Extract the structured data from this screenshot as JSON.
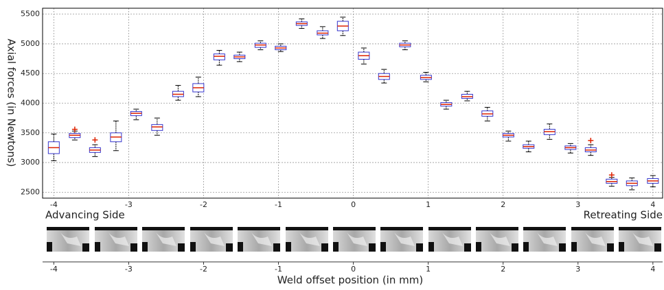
{
  "chart_data": {
    "type": "box",
    "ylabel": "Axial forces (in Newtons)",
    "xlabel": "Weld offset position (in mm)",
    "annotations": [
      "Advancing Side",
      "Retreating Side"
    ],
    "xlim": [
      -4.15,
      4.13
    ],
    "ylim": [
      2400,
      5600
    ],
    "xticks": [
      -4,
      -3,
      -2,
      -1,
      0,
      1,
      2,
      3,
      4
    ],
    "yticks": [
      2500,
      3000,
      3500,
      4000,
      4500,
      5000,
      5500
    ],
    "grid": true,
    "box_color": "#3333cc",
    "median_color": "#dd2200",
    "whisker_color": "#000000",
    "flier_color": "#dd2200",
    "boxes": [
      {
        "x": -4,
        "median": 3250,
        "q1": 3150,
        "q3": 3350,
        "whislo": 3030,
        "whishi": 3480
      },
      {
        "x": -3.72,
        "median": 3460,
        "q1": 3420,
        "q3": 3490,
        "whislo": 3380,
        "whishi": 3530,
        "fliers": [
          3560
        ]
      },
      {
        "x": -3.45,
        "median": 3210,
        "q1": 3170,
        "q3": 3250,
        "whislo": 3100,
        "whishi": 3300,
        "fliers": [
          3380
        ]
      },
      {
        "x": -3.17,
        "median": 3430,
        "q1": 3350,
        "q3": 3500,
        "whislo": 3200,
        "whishi": 3700
      },
      {
        "x": -2.9,
        "median": 3830,
        "q1": 3790,
        "q3": 3860,
        "whislo": 3720,
        "whishi": 3900
      },
      {
        "x": -2.62,
        "median": 3600,
        "q1": 3540,
        "q3": 3640,
        "whislo": 3460,
        "whishi": 3750
      },
      {
        "x": -2.34,
        "median": 4150,
        "q1": 4110,
        "q3": 4200,
        "whislo": 4050,
        "whishi": 4300
      },
      {
        "x": -2.07,
        "median": 4260,
        "q1": 4190,
        "q3": 4330,
        "whislo": 4110,
        "whishi": 4440
      },
      {
        "x": -1.79,
        "median": 4790,
        "q1": 4730,
        "q3": 4830,
        "whislo": 4640,
        "whishi": 4890
      },
      {
        "x": -1.52,
        "median": 4780,
        "q1": 4750,
        "q3": 4810,
        "whislo": 4700,
        "whishi": 4860
      },
      {
        "x": -1.24,
        "median": 4980,
        "q1": 4940,
        "q3": 5010,
        "whislo": 4900,
        "whishi": 5050
      },
      {
        "x": -0.97,
        "median": 4930,
        "q1": 4900,
        "q3": 4960,
        "whislo": 4870,
        "whishi": 5000
      },
      {
        "x": -0.69,
        "median": 5340,
        "q1": 5310,
        "q3": 5370,
        "whislo": 5260,
        "whishi": 5420
      },
      {
        "x": -0.41,
        "median": 5180,
        "q1": 5150,
        "q3": 5220,
        "whislo": 5090,
        "whishi": 5290
      },
      {
        "x": -0.14,
        "median": 5300,
        "q1": 5220,
        "q3": 5380,
        "whislo": 5140,
        "whishi": 5450
      },
      {
        "x": 0.14,
        "median": 4800,
        "q1": 4740,
        "q3": 4860,
        "whislo": 4660,
        "whishi": 4930
      },
      {
        "x": 0.41,
        "median": 4450,
        "q1": 4400,
        "q3": 4500,
        "whislo": 4340,
        "whishi": 4570
      },
      {
        "x": 0.69,
        "median": 4980,
        "q1": 4950,
        "q3": 5010,
        "whislo": 4900,
        "whishi": 5050
      },
      {
        "x": 0.97,
        "median": 4430,
        "q1": 4400,
        "q3": 4470,
        "whislo": 4360,
        "whishi": 4520
      },
      {
        "x": 1.24,
        "median": 3980,
        "q1": 3950,
        "q3": 4010,
        "whislo": 3900,
        "whishi": 4050
      },
      {
        "x": 1.52,
        "median": 4110,
        "q1": 4080,
        "q3": 4150,
        "whislo": 4040,
        "whishi": 4200
      },
      {
        "x": 1.79,
        "median": 3820,
        "q1": 3780,
        "q3": 3870,
        "whislo": 3700,
        "whishi": 3930
      },
      {
        "x": 2.07,
        "median": 3460,
        "q1": 3430,
        "q3": 3490,
        "whislo": 3360,
        "whishi": 3530
      },
      {
        "x": 2.34,
        "median": 3270,
        "q1": 3240,
        "q3": 3300,
        "whislo": 3180,
        "whishi": 3360
      },
      {
        "x": 2.62,
        "median": 3520,
        "q1": 3470,
        "q3": 3560,
        "whislo": 3390,
        "whishi": 3650
      },
      {
        "x": 2.9,
        "median": 3250,
        "q1": 3220,
        "q3": 3280,
        "whislo": 3160,
        "whishi": 3320
      },
      {
        "x": 3.17,
        "median": 3210,
        "q1": 3180,
        "q3": 3250,
        "whislo": 3120,
        "whishi": 3300,
        "fliers": [
          3370
        ]
      },
      {
        "x": 3.45,
        "median": 2680,
        "q1": 2650,
        "q3": 2720,
        "whislo": 2600,
        "whishi": 2750,
        "fliers": [
          2790
        ]
      },
      {
        "x": 3.72,
        "median": 2650,
        "q1": 2610,
        "q3": 2690,
        "whislo": 2540,
        "whishi": 2740
      },
      {
        "x": 4,
        "median": 2690,
        "q1": 2650,
        "q3": 2730,
        "whislo": 2590,
        "whishi": 2780
      }
    ]
  }
}
